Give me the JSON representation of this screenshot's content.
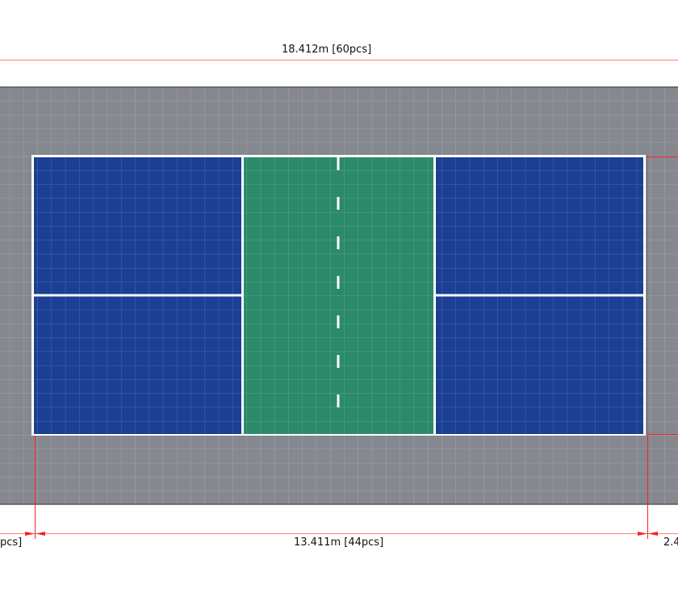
{
  "dimensions": {
    "overall_width": "18.412m [60pcs]",
    "court_length": "13.411m [44pcs]",
    "left_margin_partial": "pcs]",
    "right_margin_partial": "2.4"
  },
  "colors": {
    "surround": "#868890",
    "baseline_zone": "#1b3f94",
    "kitchen_zone": "#2a8a6a",
    "court_lines": "#ffffff",
    "dimension_lines": "#ff2020"
  }
}
